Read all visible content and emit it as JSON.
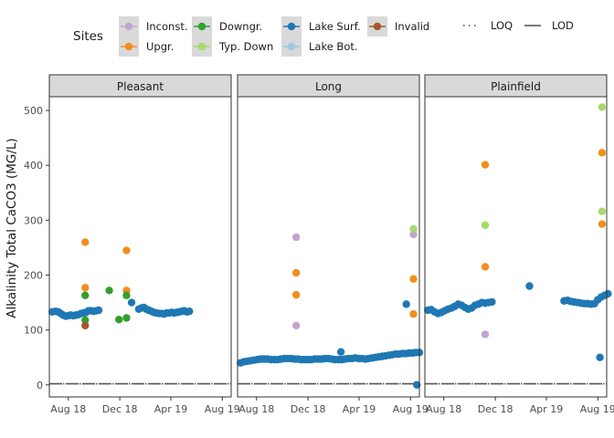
{
  "chart_data": {
    "type": "scatter",
    "ylabel": "Alkalinity Total CaCO3 (MG/L)",
    "ylim": [
      -22,
      525
    ],
    "y_ticks": [
      0,
      100,
      200,
      300,
      400,
      500
    ],
    "x_ticks": [
      "Aug 18",
      "Dec 18",
      "Apr 19",
      "Aug 19"
    ],
    "xlim": [
      -45,
      386
    ],
    "x_tick_positions_days": [
      0,
      122,
      243,
      365
    ],
    "x_day_zero": "2018-08-01",
    "grid": false,
    "legend": {
      "title": "Sites",
      "placement": "top",
      "entries": [
        {
          "key": "inconst",
          "label": "Inconst.",
          "color": "#C2A5CF"
        },
        {
          "key": "upgr",
          "label": "Upgr.",
          "color": "#F28E1C"
        },
        {
          "key": "downgr",
          "label": "Downgr.",
          "color": "#33A02C"
        },
        {
          "key": "typdown",
          "label": "Typ. Down",
          "color": "#A6D96A"
        },
        {
          "key": "lakesurf",
          "label": "Lake Surf.",
          "color": "#1F78B4"
        },
        {
          "key": "lakebot",
          "label": "Lake Bot.",
          "color": "#9ECAE1"
        },
        {
          "key": "invalid",
          "label": "Invalid",
          "color": "#A6562C"
        }
      ],
      "lines": [
        {
          "key": "loq",
          "label": "LOQ",
          "style": "dotted"
        },
        {
          "key": "lod",
          "label": "LOD",
          "style": "solid"
        }
      ]
    },
    "reference_lines": [
      {
        "name": "LOQ",
        "value": 2,
        "style": "dotted",
        "color": "#555555"
      },
      {
        "name": "LOD",
        "value": 2,
        "style": "dashed",
        "color": "#555555"
      }
    ],
    "panels": [
      {
        "title": "Pleasant",
        "series": [
          {
            "site": "lakesurf",
            "x": [
              -38,
              -30,
              -24,
              -18,
              -12,
              -6,
              0,
              6,
              12,
              18,
              24,
              30,
              36,
              42,
              48,
              54,
              60,
              66,
              72,
              150,
              167,
              173,
              179,
              185,
              191,
              197,
              203,
              209,
              215,
              221,
              227,
              233,
              239,
              245,
              251,
              257,
              263,
              269,
              275,
              281,
              287
            ],
            "y": [
              133,
              134,
              133,
              130,
              127,
              125,
              126,
              127,
              126,
              127,
              128,
              130,
              131,
              132,
              135,
              135,
              134,
              135,
              136,
              150,
              138,
              140,
              141,
              138,
              136,
              134,
              132,
              131,
              130,
              130,
              129,
              131,
              131,
              132,
              131,
              132,
              133,
              134,
              135,
              133,
              134
            ]
          },
          {
            "site": "upgr",
            "x": [
              40,
              40,
              138,
              138
            ],
            "y": [
              260,
              177,
              245,
              172
            ]
          },
          {
            "site": "downgr",
            "x": [
              40,
              40,
              97,
              120,
              138,
              138
            ],
            "y": [
              163,
              118,
              172,
              119,
              163,
              122
            ]
          },
          {
            "site": "invalid",
            "x": [
              40
            ],
            "y": [
              108
            ]
          }
        ]
      },
      {
        "title": "Long",
        "series": [
          {
            "site": "lakesurf",
            "x": [
              -38,
              -30,
              -22,
              -14,
              -6,
              2,
              10,
              18,
              26,
              34,
              42,
              50,
              58,
              66,
              74,
              82,
              90,
              98,
              106,
              114,
              122,
              130,
              138,
              146,
              154,
              162,
              170,
              178,
              186,
              194,
              202,
              210,
              218,
              226,
              234,
              242,
              250,
              258,
              266,
              274,
              282,
              290,
              298,
              306,
              314,
              322,
              330,
              338,
              346,
              354,
              362,
              370,
              378,
              386
            ],
            "y": [
              40,
              42,
              43,
              44,
              45,
              46,
              47,
              47,
              47,
              46,
              46,
              46,
              47,
              48,
              48,
              48,
              47,
              47,
              46,
              46,
              46,
              46,
              47,
              47,
              47,
              48,
              48,
              47,
              46,
              46,
              46,
              47,
              48,
              48,
              49,
              48,
              48,
              47,
              48,
              49,
              50,
              51,
              52,
              53,
              54,
              55,
              56,
              56,
              57,
              57,
              58,
              58,
              59,
              59
            ]
          },
          {
            "site": "lakesurf",
            "x": [
              200,
              355
            ],
            "y": [
              60,
              147
            ]
          },
          {
            "site": "lakesurf",
            "x": [
              380
            ],
            "y": [
              0
            ]
          },
          {
            "site": "inconst",
            "x": [
              94,
              94,
              372
            ],
            "y": [
              269,
              108,
              274
            ]
          },
          {
            "site": "upgr",
            "x": [
              94,
              94,
              372,
              372
            ],
            "y": [
              204,
              164,
              193,
              129
            ]
          },
          {
            "site": "typdown",
            "x": [
              372
            ],
            "y": [
              284
            ]
          }
        ]
      },
      {
        "title": "Plainfield",
        "series": [
          {
            "site": "lakesurf",
            "x": [
              -38,
              -30,
              -22,
              -14,
              -6,
              2,
              10,
              18,
              26,
              34,
              42,
              50,
              58,
              66,
              74,
              82,
              90,
              98,
              106,
              114
            ],
            "y": [
              136,
              137,
              133,
              130,
              132,
              135,
              138,
              140,
              143,
              147,
              145,
              141,
              138,
              140,
              145,
              147,
              150,
              149,
              150,
              151
            ]
          },
          {
            "site": "lakesurf",
            "x": [
              203
            ],
            "y": [
              180
            ]
          },
          {
            "site": "lakesurf",
            "x": [
              285,
              293,
              301,
              309,
              317,
              325,
              333,
              341,
              349,
              357,
              365,
              373,
              381,
              389
            ],
            "y": [
              153,
              154,
              152,
              151,
              150,
              149,
              148,
              148,
              147,
              148,
              155,
              160,
              163,
              166
            ]
          },
          {
            "site": "lakesurf",
            "x": [
              370
            ],
            "y": [
              50
            ]
          },
          {
            "site": "inconst",
            "x": [
              98
            ],
            "y": [
              92
            ]
          },
          {
            "site": "upgr",
            "x": [
              98,
              98,
              375,
              375
            ],
            "y": [
              401,
              215,
              423,
              293
            ]
          },
          {
            "site": "typdown",
            "x": [
              98,
              375,
              375
            ],
            "y": [
              291,
              506,
              316
            ]
          }
        ]
      }
    ]
  }
}
